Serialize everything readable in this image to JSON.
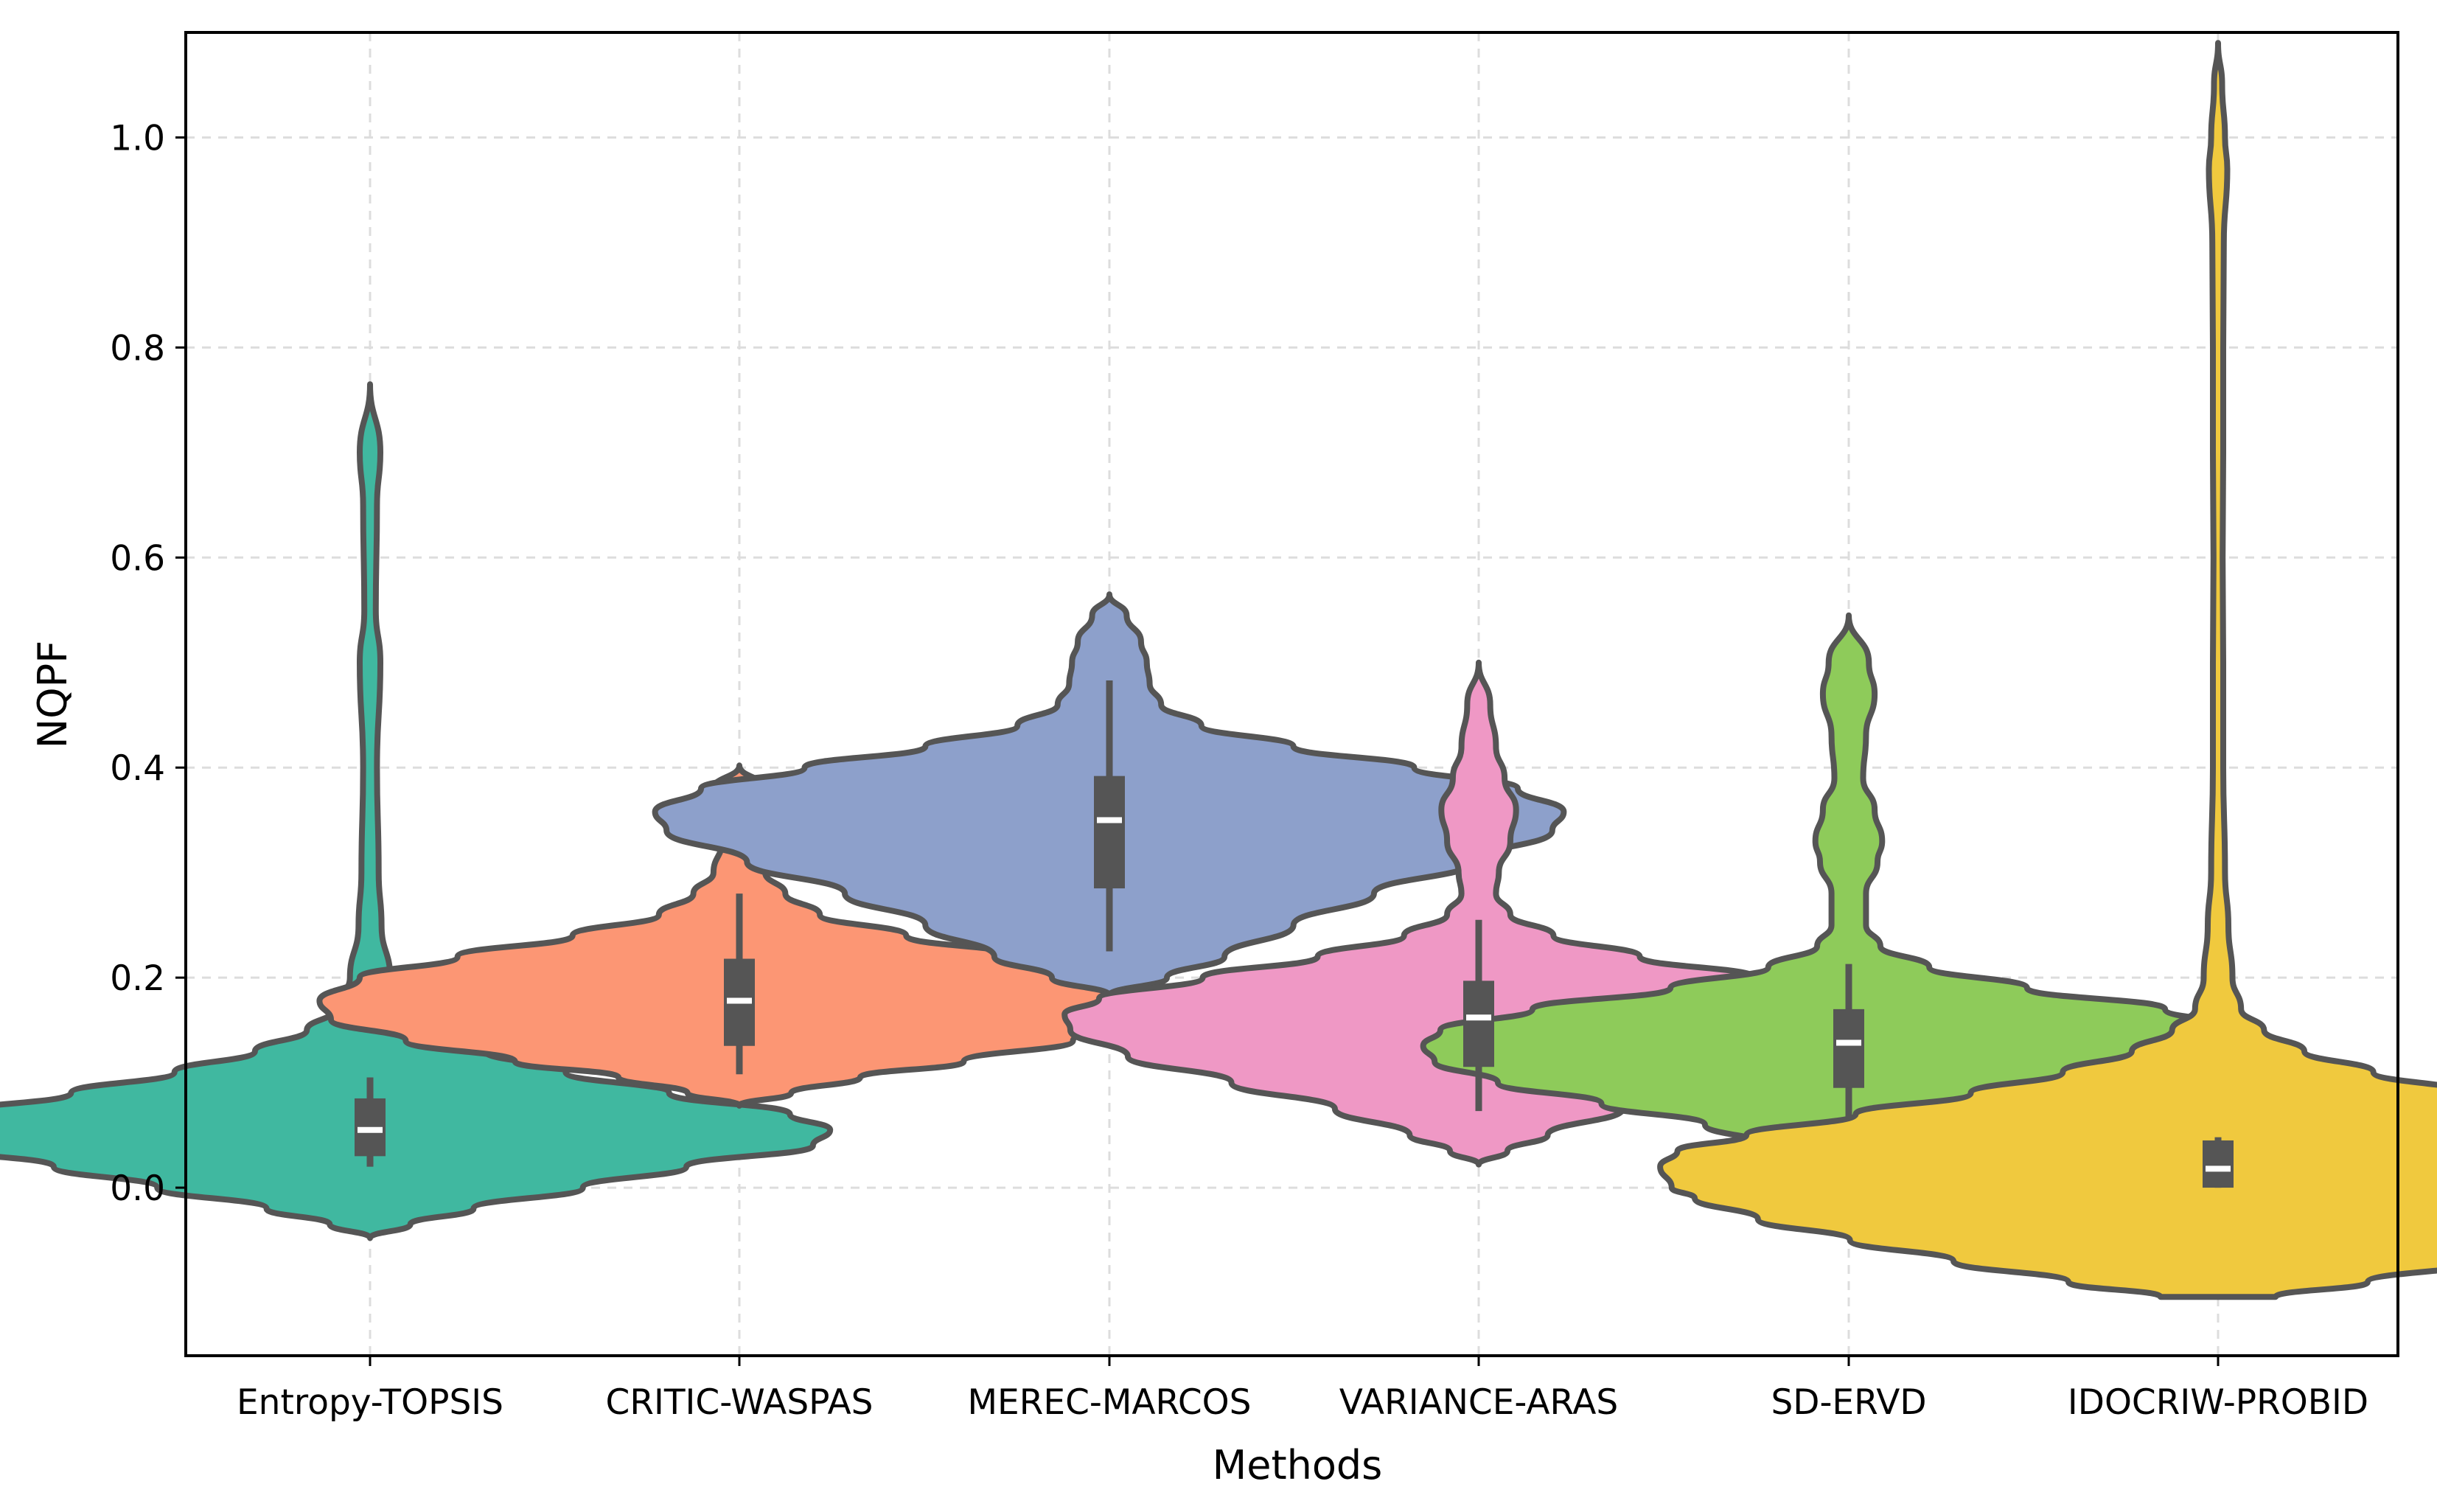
{
  "chart_data": {
    "type": "violin",
    "title": "",
    "xlabel": "Methods",
    "ylabel": "NQPF",
    "ylim": [
      -0.16,
      1.1
    ],
    "yticks": [
      0.0,
      0.2,
      0.4,
      0.6,
      0.8,
      1.0
    ],
    "ytick_labels": [
      "0.0",
      "0.2",
      "0.4",
      "0.6",
      "0.8",
      "1.0"
    ],
    "grid": true,
    "categories": [
      "Entropy-TOPSIS",
      "CRITIC-WASPAS",
      "MEREC-MARCOS",
      "VARIANCE-ARAS",
      "SD-ERVD",
      "IDOCRIW-PROBID"
    ],
    "colors": [
      "#40b8a0",
      "#fc9674",
      "#8da0cb",
      "#ef98c5",
      "#8ecb5a",
      "#f0c93e"
    ],
    "edge_color": "#555555",
    "violins": [
      {
        "name": "Entropy-TOPSIS",
        "range": [
          -0.048,
          0.765
        ],
        "median": 0.055,
        "q1": 0.03,
        "q3": 0.085,
        "whisker_low": 0.02,
        "whisker_high": 0.105,
        "profile": [
          [
            -0.048,
            0.0
          ],
          [
            -0.035,
            0.007
          ],
          [
            -0.02,
            0.018
          ],
          [
            0.0,
            0.037
          ],
          [
            0.02,
            0.055
          ],
          [
            0.04,
            0.077
          ],
          [
            0.055,
            0.08
          ],
          [
            0.07,
            0.073
          ],
          [
            0.09,
            0.052
          ],
          [
            0.11,
            0.034
          ],
          [
            0.13,
            0.02
          ],
          [
            0.15,
            0.011
          ],
          [
            0.17,
            0.006
          ],
          [
            0.2,
            0.0035
          ],
          [
            0.25,
            0.002
          ],
          [
            0.3,
            0.0015
          ],
          [
            0.4,
            0.0012
          ],
          [
            0.5,
            0.0018
          ],
          [
            0.55,
            0.001
          ],
          [
            0.65,
            0.0012
          ],
          [
            0.7,
            0.0018
          ],
          [
            0.765,
            0.0
          ]
        ]
      },
      {
        "name": "CRITIC-WASPAS",
        "range": [
          0.078,
          0.402
        ],
        "median": 0.178,
        "q1": 0.135,
        "q3": 0.218,
        "whisker_low": 0.108,
        "whisker_high": 0.28,
        "profile": [
          [
            0.078,
            0.0
          ],
          [
            0.09,
            0.009
          ],
          [
            0.105,
            0.021
          ],
          [
            0.12,
            0.039
          ],
          [
            0.14,
            0.058
          ],
          [
            0.16,
            0.071
          ],
          [
            0.178,
            0.073
          ],
          [
            0.2,
            0.066
          ],
          [
            0.22,
            0.049
          ],
          [
            0.24,
            0.029
          ],
          [
            0.26,
            0.014
          ],
          [
            0.28,
            0.008
          ],
          [
            0.3,
            0.0045
          ],
          [
            0.33,
            0.003
          ],
          [
            0.36,
            0.005
          ],
          [
            0.38,
            0.0045
          ],
          [
            0.402,
            0.0
          ]
        ]
      },
      {
        "name": "MEREC-MARCOS",
        "range": [
          0.183,
          0.565
        ],
        "median": 0.35,
        "q1": 0.285,
        "q3": 0.392,
        "whisker_low": 0.225,
        "whisker_high": 0.483,
        "profile": [
          [
            0.183,
            0.0
          ],
          [
            0.2,
            0.01
          ],
          [
            0.22,
            0.02
          ],
          [
            0.25,
            0.032
          ],
          [
            0.28,
            0.046
          ],
          [
            0.31,
            0.063
          ],
          [
            0.34,
            0.077
          ],
          [
            0.358,
            0.079
          ],
          [
            0.38,
            0.071
          ],
          [
            0.4,
            0.053
          ],
          [
            0.42,
            0.032
          ],
          [
            0.44,
            0.016
          ],
          [
            0.46,
            0.009
          ],
          [
            0.48,
            0.007
          ],
          [
            0.5,
            0.0065
          ],
          [
            0.52,
            0.0055
          ],
          [
            0.545,
            0.003
          ],
          [
            0.565,
            0.0
          ]
        ]
      },
      {
        "name": "VARIANCE-ARAS",
        "range": [
          0.022,
          0.5
        ],
        "median": 0.162,
        "q1": 0.115,
        "q3": 0.197,
        "whisker_low": 0.073,
        "whisker_high": 0.255,
        "profile": [
          [
            0.022,
            0.0
          ],
          [
            0.035,
            0.005
          ],
          [
            0.05,
            0.012
          ],
          [
            0.075,
            0.025
          ],
          [
            0.1,
            0.043
          ],
          [
            0.125,
            0.061
          ],
          [
            0.15,
            0.071
          ],
          [
            0.165,
            0.072
          ],
          [
            0.18,
            0.066
          ],
          [
            0.2,
            0.048
          ],
          [
            0.22,
            0.028
          ],
          [
            0.24,
            0.013
          ],
          [
            0.26,
            0.0055
          ],
          [
            0.28,
            0.003
          ],
          [
            0.3,
            0.0035
          ],
          [
            0.33,
            0.0055
          ],
          [
            0.36,
            0.0065
          ],
          [
            0.39,
            0.0045
          ],
          [
            0.42,
            0.003
          ],
          [
            0.46,
            0.002
          ],
          [
            0.5,
            0.0
          ]
        ]
      },
      {
        "name": "SD-ERVD",
        "range": [
          0.012,
          0.545
        ],
        "median": 0.138,
        "q1": 0.095,
        "q3": 0.17,
        "whisker_low": 0.065,
        "whisker_high": 0.213,
        "profile": [
          [
            0.012,
            0.0
          ],
          [
            0.025,
            0.006
          ],
          [
            0.04,
            0.014
          ],
          [
            0.06,
            0.025
          ],
          [
            0.08,
            0.043
          ],
          [
            0.1,
            0.061
          ],
          [
            0.12,
            0.072
          ],
          [
            0.135,
            0.074
          ],
          [
            0.15,
            0.071
          ],
          [
            0.17,
            0.055
          ],
          [
            0.19,
            0.031
          ],
          [
            0.21,
            0.014
          ],
          [
            0.23,
            0.0055
          ],
          [
            0.25,
            0.003
          ],
          [
            0.28,
            0.003
          ],
          [
            0.31,
            0.005
          ],
          [
            0.33,
            0.0058
          ],
          [
            0.36,
            0.0045
          ],
          [
            0.39,
            0.0025
          ],
          [
            0.43,
            0.003
          ],
          [
            0.47,
            0.0045
          ],
          [
            0.5,
            0.0035
          ],
          [
            0.545,
            0.0
          ]
        ]
      },
      {
        "name": "IDOCRIW-PROBID",
        "range": [
          -0.104,
          1.09
        ],
        "median": 0.018,
        "q1": 0.0,
        "q3": 0.045,
        "whisker_low": 0.0,
        "whisker_high": 0.048,
        "flat_bottom": true,
        "profile": [
          [
            -0.104,
            0.01
          ],
          [
            -0.09,
            0.026
          ],
          [
            -0.07,
            0.046
          ],
          [
            -0.05,
            0.064
          ],
          [
            -0.03,
            0.08
          ],
          [
            -0.01,
            0.091
          ],
          [
            0.0,
            0.095
          ],
          [
            0.02,
            0.097
          ],
          [
            0.035,
            0.094
          ],
          [
            0.05,
            0.082
          ],
          [
            0.07,
            0.063
          ],
          [
            0.09,
            0.043
          ],
          [
            0.11,
            0.027
          ],
          [
            0.13,
            0.015
          ],
          [
            0.15,
            0.008
          ],
          [
            0.17,
            0.004
          ],
          [
            0.2,
            0.0025
          ],
          [
            0.25,
            0.0018
          ],
          [
            0.3,
            0.0012
          ],
          [
            0.4,
            0.0009
          ],
          [
            0.5,
            0.0009
          ],
          [
            0.6,
            0.0008
          ],
          [
            0.7,
            0.0009
          ],
          [
            0.8,
            0.0009
          ],
          [
            0.9,
            0.001
          ],
          [
            0.97,
            0.0016
          ],
          [
            1.0,
            0.0012
          ],
          [
            1.05,
            0.0007
          ],
          [
            1.09,
            0.0
          ]
        ]
      }
    ]
  }
}
